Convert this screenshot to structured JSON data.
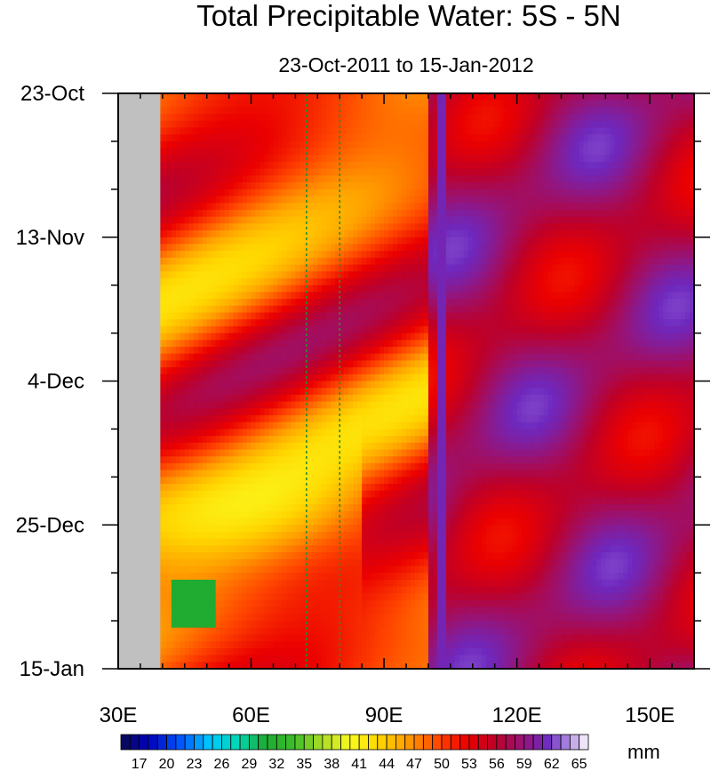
{
  "chart_data": {
    "type": "heatmap",
    "title": "Total Precipitable Water: 5S - 5N",
    "subtitle": "23-Oct-2011 to 15-Jan-2012",
    "x_axis": {
      "range": [
        30,
        160
      ],
      "ticks": [
        30,
        60,
        90,
        120,
        150
      ],
      "tick_labels": [
        "30E",
        "60E",
        "90E",
        "120E",
        "150E"
      ]
    },
    "y_axis": {
      "range_days": [
        0,
        84
      ],
      "ticks_days": [
        0,
        21,
        42,
        63,
        84
      ],
      "tick_labels": [
        "23-Oct",
        "13-Nov",
        "4-Dec",
        "25-Dec",
        "15-Jan"
      ]
    },
    "colorbar": {
      "unit": "mm",
      "min": 15,
      "max": 66,
      "step": 1,
      "labels": [
        "17",
        "20",
        "23",
        "26",
        "29",
        "32",
        "35",
        "38",
        "41",
        "44",
        "47",
        "50",
        "53",
        "56",
        "59",
        "62",
        "65"
      ],
      "label_values": [
        17,
        20,
        23,
        26,
        29,
        32,
        35,
        38,
        41,
        44,
        47,
        50,
        53,
        56,
        59,
        62,
        65
      ]
    },
    "missing_band_lon": [
      30,
      39.5
    ],
    "reference_lines_lon": [
      72.5,
      80
    ],
    "features": [
      {
        "lon_range": [
          40,
          100
        ],
        "day_range": [
          0,
          84
        ],
        "typical_mm": 48,
        "note": "drier west basin with yellow/red streaks"
      },
      {
        "lon_range": [
          100,
          160
        ],
        "day_range": [
          0,
          84
        ],
        "typical_mm": 58,
        "note": "moist warm pool, purple"
      },
      {
        "lon_range": [
          42,
          52
        ],
        "day_range": [
          72,
          78
        ],
        "typical_mm": 30,
        "note": "dry green/cyan patch"
      }
    ],
    "colors": {
      "missing": "#c0c0c0",
      "ref_line": "#2e8b2e"
    }
  }
}
